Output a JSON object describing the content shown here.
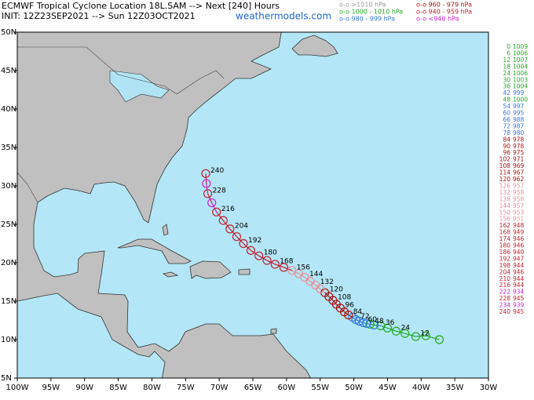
{
  "header": {
    "title": "ECMWF Tropical Cyclone Location 18L.SAM --> Next [240] Hours",
    "init": "INIT: 12Z23SEP2021 --> Sun 12Z03OCT2021",
    "site": "weathermodels.com"
  },
  "legend": [
    {
      "label": "o-o >1010 hPa",
      "color": "#9a9a9a"
    },
    {
      "label": "o-o 1000 - 1010 hPa",
      "color": "#22aa22"
    },
    {
      "label": "o-o 980 - 999 hPa",
      "color": "#3377dd"
    },
    {
      "label": "o-o 960 - 979 hPa",
      "color": "#aa1111"
    },
    {
      "label": "o-o 940 - 959 hPa",
      "color": "#c02030"
    },
    {
      "label": "o-o <940 hPa",
      "color": "#cc22cc"
    }
  ],
  "map": {
    "xlim": [
      -100,
      -30
    ],
    "ylim": [
      5,
      50
    ],
    "xticks": [
      {
        "value": -100,
        "label": "100W"
      },
      {
        "value": -95,
        "label": "95W"
      },
      {
        "value": -90,
        "label": "90W"
      },
      {
        "value": -85,
        "label": "85W"
      },
      {
        "value": -80,
        "label": "80W"
      },
      {
        "value": -75,
        "label": "75W"
      },
      {
        "value": -70,
        "label": "70W"
      },
      {
        "value": -65,
        "label": "65W"
      },
      {
        "value": -60,
        "label": "60W"
      },
      {
        "value": -55,
        "label": "55W"
      },
      {
        "value": -50,
        "label": "50W"
      },
      {
        "value": -45,
        "label": "45W"
      },
      {
        "value": -40,
        "label": "40W"
      },
      {
        "value": -35,
        "label": "35W"
      },
      {
        "value": -30,
        "label": "30W"
      }
    ],
    "yticks": [
      {
        "value": 50,
        "label": "50N"
      },
      {
        "value": 45,
        "label": "45N"
      },
      {
        "value": 40,
        "label": "40N"
      },
      {
        "value": 35,
        "label": "35N"
      },
      {
        "value": 30,
        "label": "30N"
      },
      {
        "value": 25,
        "label": "25N"
      },
      {
        "value": 20,
        "label": "20N"
      },
      {
        "value": 15,
        "label": "15N"
      },
      {
        "value": 10,
        "label": "10N"
      },
      {
        "value": 5,
        "label": "5N"
      }
    ]
  },
  "track": [
    {
      "hour": 0,
      "lon": -37.3,
      "lat": 10.0,
      "pressure": 1009,
      "color": "#22aa22"
    },
    {
      "hour": 6,
      "lon": -39.3,
      "lat": 10.5,
      "pressure": 1006,
      "color": "#22aa22"
    },
    {
      "hour": 12,
      "lon": -40.8,
      "lat": 10.4,
      "pressure": 1007,
      "color": "#22aa22"
    },
    {
      "hour": 18,
      "lon": -42.4,
      "lat": 10.8,
      "pressure": 1004,
      "color": "#22aa22"
    },
    {
      "hour": 24,
      "lon": -43.7,
      "lat": 11.1,
      "pressure": 1006,
      "color": "#22aa22"
    },
    {
      "hour": 30,
      "lon": -45.0,
      "lat": 11.5,
      "pressure": 1003,
      "color": "#22aa22"
    },
    {
      "hour": 36,
      "lon": -46.0,
      "lat": 11.8,
      "pressure": 1004,
      "color": "#22aa22"
    },
    {
      "hour": 42,
      "lon": -47.0,
      "lat": 11.9,
      "pressure": 999,
      "color": "#3377dd"
    },
    {
      "hour": 48,
      "lon": -47.6,
      "lat": 12.0,
      "pressure": 1000,
      "color": "#22aa22"
    },
    {
      "hour": 54,
      "lon": -48.1,
      "lat": 12.1,
      "pressure": 997,
      "color": "#3377dd"
    },
    {
      "hour": 60,
      "lon": -48.6,
      "lat": 12.2,
      "pressure": 995,
      "color": "#3377dd"
    },
    {
      "hour": 66,
      "lon": -49.2,
      "lat": 12.4,
      "pressure": 988,
      "color": "#3377dd"
    },
    {
      "hour": 72,
      "lon": -49.7,
      "lat": 12.6,
      "pressure": 987,
      "color": "#3377dd"
    },
    {
      "hour": 78,
      "lon": -50.2,
      "lat": 12.9,
      "pressure": 980,
      "color": "#3377dd"
    },
    {
      "hour": 84,
      "lon": -50.8,
      "lat": 13.2,
      "pressure": 978,
      "color": "#aa1111"
    },
    {
      "hour": 90,
      "lon": -51.4,
      "lat": 13.6,
      "pressure": 978,
      "color": "#aa1111"
    },
    {
      "hour": 96,
      "lon": -52.0,
      "lat": 14.1,
      "pressure": 975,
      "color": "#aa1111"
    },
    {
      "hour": 102,
      "lon": -52.6,
      "lat": 14.6,
      "pressure": 971,
      "color": "#aa1111"
    },
    {
      "hour": 108,
      "lon": -53.1,
      "lat": 15.1,
      "pressure": 969,
      "color": "#aa1111"
    },
    {
      "hour": 114,
      "lon": -53.7,
      "lat": 15.6,
      "pressure": 967,
      "color": "#aa1111"
    },
    {
      "hour": 120,
      "lon": -54.3,
      "lat": 16.1,
      "pressure": 962,
      "color": "#aa1111"
    },
    {
      "hour": 126,
      "lon": -55.0,
      "lat": 16.6,
      "pressure": 957,
      "color": "#e8909a"
    },
    {
      "hour": 132,
      "lon": -55.7,
      "lat": 17.1,
      "pressure": 958,
      "color": "#e8909a"
    },
    {
      "hour": 138,
      "lon": -56.5,
      "lat": 17.6,
      "pressure": 958,
      "color": "#e8909a"
    },
    {
      "hour": 144,
      "lon": -57.3,
      "lat": 18.1,
      "pressure": 957,
      "color": "#e8909a"
    },
    {
      "hour": 150,
      "lon": -58.2,
      "lat": 18.6,
      "pressure": 953,
      "color": "#e8909a"
    },
    {
      "hour": 156,
      "lon": -59.2,
      "lat": 19.0,
      "pressure": 951,
      "color": "#e8909a"
    },
    {
      "hour": 162,
      "lon": -60.4,
      "lat": 19.4,
      "pressure": 948,
      "color": "#c02030"
    },
    {
      "hour": 168,
      "lon": -61.7,
      "lat": 19.8,
      "pressure": 949,
      "color": "#c02030"
    },
    {
      "hour": 174,
      "lon": -62.9,
      "lat": 20.3,
      "pressure": 946,
      "color": "#c02030"
    },
    {
      "hour": 180,
      "lon": -64.1,
      "lat": 20.9,
      "pressure": 946,
      "color": "#c02030"
    },
    {
      "hour": 186,
      "lon": -65.3,
      "lat": 21.6,
      "pressure": 940,
      "color": "#c02030"
    },
    {
      "hour": 192,
      "lon": -66.4,
      "lat": 22.5,
      "pressure": 947,
      "color": "#c02030"
    },
    {
      "hour": 198,
      "lon": -67.4,
      "lat": 23.4,
      "pressure": 944,
      "color": "#c02030"
    },
    {
      "hour": 204,
      "lon": -68.4,
      "lat": 24.4,
      "pressure": 946,
      "color": "#c02030"
    },
    {
      "hour": 210,
      "lon": -69.4,
      "lat": 25.5,
      "pressure": 944,
      "color": "#c02030"
    },
    {
      "hour": 216,
      "lon": -70.4,
      "lat": 26.6,
      "pressure": 944,
      "color": "#c02030"
    },
    {
      "hour": 222,
      "lon": -71.1,
      "lat": 27.8,
      "pressure": 934,
      "color": "#cc22cc"
    },
    {
      "hour": 228,
      "lon": -71.7,
      "lat": 29.0,
      "pressure": 945,
      "color": "#c02030"
    },
    {
      "hour": 234,
      "lon": -71.9,
      "lat": 30.3,
      "pressure": 939,
      "color": "#cc22cc"
    },
    {
      "hour": 240,
      "lon": -72.0,
      "lat": 31.6,
      "pressure": 945,
      "color": "#c02030"
    }
  ]
}
